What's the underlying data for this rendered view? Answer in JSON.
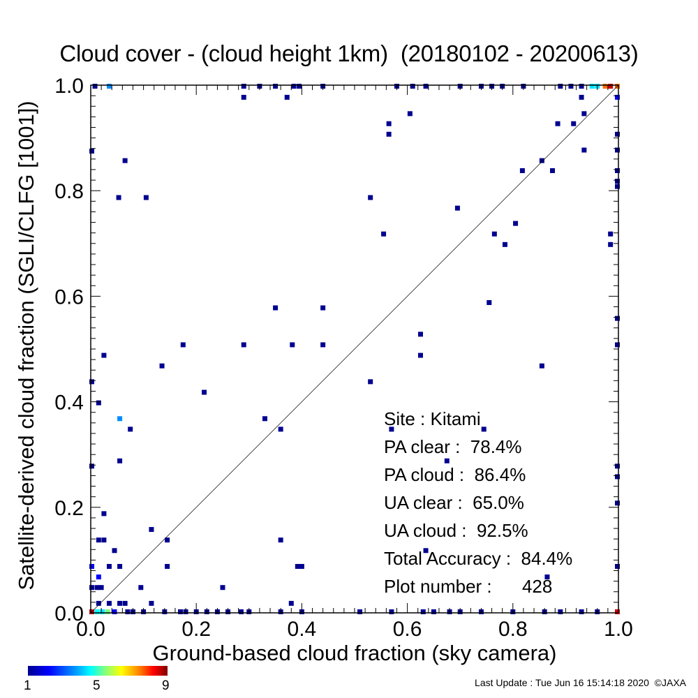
{
  "chart_data": {
    "type": "heatmap",
    "title": "Cloud cover - (cloud height 1km)  (20180102 - 20200613)",
    "xlabel": "Ground-based cloud fraction (sky camera)",
    "ylabel": "Satellite-derived cloud fraction (SGLI/CLFG [1001])",
    "xlim": [
      0.0,
      1.0
    ],
    "ylim": [
      0.0,
      1.0
    ],
    "x_ticks": [
      "0.0",
      "0.2",
      "0.4",
      "0.6",
      "0.8",
      "1.0"
    ],
    "y_ticks": [
      "0.0",
      "0.2",
      "0.4",
      "0.6",
      "0.8",
      "1.0"
    ],
    "reference_line": "1:1 diagonal",
    "colorbar": {
      "min": 1,
      "max": 9,
      "tick_labels": [
        "1",
        "5",
        "9"
      ]
    },
    "cells": [
      {
        "x": 0.065,
        "y": 0.857,
        "count": 1
      },
      {
        "x": 0.053,
        "y": 0.787,
        "count": 1
      },
      {
        "x": 0.105,
        "y": 0.787,
        "count": 1
      },
      {
        "x": 0.002,
        "y": 0.875,
        "count": 1
      },
      {
        "x": 0.29,
        "y": 0.977,
        "count": 1
      },
      {
        "x": 0.372,
        "y": 0.977,
        "count": 1
      },
      {
        "x": 0.008,
        "y": 0.998,
        "count": 1
      },
      {
        "x": 0.035,
        "y": 0.998,
        "count": 3
      },
      {
        "x": 0.29,
        "y": 0.998,
        "count": 1
      },
      {
        "x": 0.32,
        "y": 0.998,
        "count": 1
      },
      {
        "x": 0.35,
        "y": 0.998,
        "count": 1
      },
      {
        "x": 0.385,
        "y": 0.998,
        "count": 1
      },
      {
        "x": 0.395,
        "y": 0.998,
        "count": 1
      },
      {
        "x": 0.44,
        "y": 0.998,
        "count": 1
      },
      {
        "x": 0.58,
        "y": 0.998,
        "count": 1
      },
      {
        "x": 0.61,
        "y": 0.998,
        "count": 1
      },
      {
        "x": 0.635,
        "y": 0.998,
        "count": 1
      },
      {
        "x": 0.7,
        "y": 0.998,
        "count": 1
      },
      {
        "x": 0.74,
        "y": 0.998,
        "count": 1
      },
      {
        "x": 0.76,
        "y": 0.998,
        "count": 1
      },
      {
        "x": 0.78,
        "y": 0.998,
        "count": 1
      },
      {
        "x": 0.82,
        "y": 0.998,
        "count": 1
      },
      {
        "x": 0.89,
        "y": 0.998,
        "count": 1
      },
      {
        "x": 0.91,
        "y": 0.998,
        "count": 1
      },
      {
        "x": 0.93,
        "y": 0.998,
        "count": 1
      },
      {
        "x": 0.95,
        "y": 0.998,
        "count": 4
      },
      {
        "x": 0.96,
        "y": 0.998,
        "count": 4
      },
      {
        "x": 0.975,
        "y": 0.998,
        "count": 8
      },
      {
        "x": 0.985,
        "y": 0.998,
        "count": 9
      },
      {
        "x": 0.998,
        "y": 0.998,
        "count": 8
      },
      {
        "x": 0.93,
        "y": 0.977,
        "count": 1
      },
      {
        "x": 0.998,
        "y": 0.977,
        "count": 2
      },
      {
        "x": 0.605,
        "y": 0.946,
        "count": 1
      },
      {
        "x": 0.935,
        "y": 0.946,
        "count": 1
      },
      {
        "x": 0.565,
        "y": 0.927,
        "count": 1
      },
      {
        "x": 0.565,
        "y": 0.907,
        "count": 1
      },
      {
        "x": 0.885,
        "y": 0.927,
        "count": 1
      },
      {
        "x": 0.915,
        "y": 0.927,
        "count": 1
      },
      {
        "x": 0.935,
        "y": 0.877,
        "count": 1
      },
      {
        "x": 0.998,
        "y": 0.907,
        "count": 1
      },
      {
        "x": 0.998,
        "y": 0.877,
        "count": 1
      },
      {
        "x": 0.855,
        "y": 0.857,
        "count": 1
      },
      {
        "x": 0.818,
        "y": 0.838,
        "count": 1
      },
      {
        "x": 0.875,
        "y": 0.838,
        "count": 1
      },
      {
        "x": 0.998,
        "y": 0.838,
        "count": 1
      },
      {
        "x": 0.998,
        "y": 0.818,
        "count": 1
      },
      {
        "x": 0.998,
        "y": 0.808,
        "count": 1
      },
      {
        "x": 0.53,
        "y": 0.787,
        "count": 1
      },
      {
        "x": 0.695,
        "y": 0.767,
        "count": 1
      },
      {
        "x": 0.555,
        "y": 0.718,
        "count": 1
      },
      {
        "x": 0.765,
        "y": 0.718,
        "count": 1
      },
      {
        "x": 0.805,
        "y": 0.738,
        "count": 1
      },
      {
        "x": 0.785,
        "y": 0.698,
        "count": 1
      },
      {
        "x": 0.985,
        "y": 0.718,
        "count": 1
      },
      {
        "x": 0.985,
        "y": 0.698,
        "count": 1
      },
      {
        "x": 0.35,
        "y": 0.578,
        "count": 1
      },
      {
        "x": 0.44,
        "y": 0.578,
        "count": 1
      },
      {
        "x": 0.755,
        "y": 0.588,
        "count": 1
      },
      {
        "x": 0.998,
        "y": 0.558,
        "count": 1
      },
      {
        "x": 0.175,
        "y": 0.508,
        "count": 1
      },
      {
        "x": 0.29,
        "y": 0.508,
        "count": 1
      },
      {
        "x": 0.382,
        "y": 0.508,
        "count": 1
      },
      {
        "x": 0.44,
        "y": 0.508,
        "count": 1
      },
      {
        "x": 0.625,
        "y": 0.528,
        "count": 1
      },
      {
        "x": 0.625,
        "y": 0.488,
        "count": 1
      },
      {
        "x": 0.998,
        "y": 0.508,
        "count": 1
      },
      {
        "x": 0.025,
        "y": 0.488,
        "count": 1
      },
      {
        "x": 0.135,
        "y": 0.468,
        "count": 1
      },
      {
        "x": 0.855,
        "y": 0.468,
        "count": 1
      },
      {
        "x": 0.002,
        "y": 0.438,
        "count": 1
      },
      {
        "x": 0.53,
        "y": 0.438,
        "count": 1
      },
      {
        "x": 0.215,
        "y": 0.418,
        "count": 1
      },
      {
        "x": 0.015,
        "y": 0.398,
        "count": 1
      },
      {
        "x": 0.055,
        "y": 0.368,
        "count": 3
      },
      {
        "x": 0.33,
        "y": 0.368,
        "count": 1
      },
      {
        "x": 0.075,
        "y": 0.348,
        "count": 1
      },
      {
        "x": 0.36,
        "y": 0.348,
        "count": 1
      },
      {
        "x": 0.57,
        "y": 0.348,
        "count": 1
      },
      {
        "x": 0.745,
        "y": 0.348,
        "count": 1
      },
      {
        "x": 0.055,
        "y": 0.288,
        "count": 1
      },
      {
        "x": 0.675,
        "y": 0.288,
        "count": 1
      },
      {
        "x": 0.002,
        "y": 0.278,
        "count": 1
      },
      {
        "x": 0.998,
        "y": 0.278,
        "count": 1
      },
      {
        "x": 0.998,
        "y": 0.258,
        "count": 1
      },
      {
        "x": 0.998,
        "y": 0.208,
        "count": 1
      },
      {
        "x": 0.025,
        "y": 0.188,
        "count": 1
      },
      {
        "x": 0.115,
        "y": 0.158,
        "count": 1
      },
      {
        "x": 0.015,
        "y": 0.138,
        "count": 1
      },
      {
        "x": 0.025,
        "y": 0.138,
        "count": 1
      },
      {
        "x": 0.145,
        "y": 0.138,
        "count": 1
      },
      {
        "x": 0.36,
        "y": 0.138,
        "count": 1
      },
      {
        "x": 0.045,
        "y": 0.118,
        "count": 1
      },
      {
        "x": 0.635,
        "y": 0.118,
        "count": 1
      },
      {
        "x": 0.002,
        "y": 0.088,
        "count": 2
      },
      {
        "x": 0.035,
        "y": 0.088,
        "count": 1
      },
      {
        "x": 0.055,
        "y": 0.088,
        "count": 1
      },
      {
        "x": 0.145,
        "y": 0.088,
        "count": 1
      },
      {
        "x": 0.392,
        "y": 0.088,
        "count": 1
      },
      {
        "x": 0.4,
        "y": 0.088,
        "count": 1
      },
      {
        "x": 0.998,
        "y": 0.088,
        "count": 1
      },
      {
        "x": 0.015,
        "y": 0.068,
        "count": 2
      },
      {
        "x": 0.865,
        "y": 0.068,
        "count": 1
      },
      {
        "x": 0.002,
        "y": 0.048,
        "count": 1
      },
      {
        "x": 0.012,
        "y": 0.048,
        "count": 1
      },
      {
        "x": 0.02,
        "y": 0.048,
        "count": 1
      },
      {
        "x": 0.095,
        "y": 0.048,
        "count": 1
      },
      {
        "x": 0.25,
        "y": 0.048,
        "count": 1
      },
      {
        "x": 0.015,
        "y": 0.018,
        "count": 1
      },
      {
        "x": 0.035,
        "y": 0.018,
        "count": 1
      },
      {
        "x": 0.055,
        "y": 0.018,
        "count": 1
      },
      {
        "x": 0.065,
        "y": 0.018,
        "count": 1
      },
      {
        "x": 0.115,
        "y": 0.018,
        "count": 1
      },
      {
        "x": 0.38,
        "y": 0.018,
        "count": 1
      },
      {
        "x": 0.002,
        "y": 0.002,
        "count": 9
      },
      {
        "x": 0.012,
        "y": 0.002,
        "count": 5
      },
      {
        "x": 0.022,
        "y": 0.002,
        "count": 4
      },
      {
        "x": 0.032,
        "y": 0.002,
        "count": 6
      },
      {
        "x": 0.045,
        "y": 0.002,
        "count": 2
      },
      {
        "x": 0.07,
        "y": 0.002,
        "count": 1
      },
      {
        "x": 0.08,
        "y": 0.002,
        "count": 1
      },
      {
        "x": 0.1,
        "y": 0.002,
        "count": 1
      },
      {
        "x": 0.14,
        "y": 0.002,
        "count": 1
      },
      {
        "x": 0.17,
        "y": 0.002,
        "count": 1
      },
      {
        "x": 0.18,
        "y": 0.002,
        "count": 1
      },
      {
        "x": 0.2,
        "y": 0.002,
        "count": 1
      },
      {
        "x": 0.22,
        "y": 0.002,
        "count": 1
      },
      {
        "x": 0.24,
        "y": 0.002,
        "count": 1
      },
      {
        "x": 0.26,
        "y": 0.002,
        "count": 1
      },
      {
        "x": 0.285,
        "y": 0.002,
        "count": 1
      },
      {
        "x": 0.3,
        "y": 0.002,
        "count": 1
      },
      {
        "x": 0.36,
        "y": 0.002,
        "count": 1
      },
      {
        "x": 0.4,
        "y": 0.002,
        "count": 1
      },
      {
        "x": 0.51,
        "y": 0.002,
        "count": 1
      },
      {
        "x": 0.57,
        "y": 0.002,
        "count": 1
      },
      {
        "x": 0.63,
        "y": 0.002,
        "count": 1
      },
      {
        "x": 0.65,
        "y": 0.002,
        "count": 1
      },
      {
        "x": 0.68,
        "y": 0.002,
        "count": 1
      },
      {
        "x": 0.7,
        "y": 0.002,
        "count": 1
      },
      {
        "x": 0.74,
        "y": 0.002,
        "count": 1
      },
      {
        "x": 0.8,
        "y": 0.002,
        "count": 1
      },
      {
        "x": 0.86,
        "y": 0.002,
        "count": 1
      },
      {
        "x": 0.89,
        "y": 0.002,
        "count": 1
      },
      {
        "x": 0.93,
        "y": 0.002,
        "count": 1
      },
      {
        "x": 0.96,
        "y": 0.002,
        "count": 1
      },
      {
        "x": 0.998,
        "y": 0.002,
        "count": 9
      }
    ]
  },
  "stats": {
    "site": "Site : Kitami",
    "pa_clear": "PA clear :  78.4%",
    "pa_cloud": "PA cloud :  86.4%",
    "ua_clear": "UA clear :  65.0%",
    "ua_cloud": "UA cloud :  92.5%",
    "total_accuracy": "Total Accuracy :  84.4%",
    "plot_number": "Plot number :      428"
  },
  "footer": "Last Update : Tue Jun 16 15:14:18 2020  ©JAXA"
}
